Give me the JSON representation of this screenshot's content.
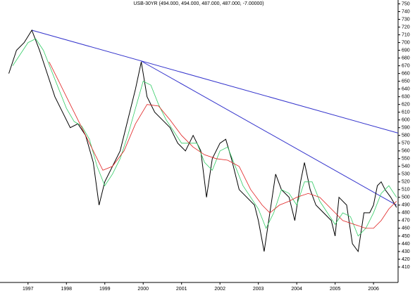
{
  "chart_data": {
    "type": "line",
    "title": "USB-30YR (494.000, 494.000, 487.000, 487.000, -7.00000)",
    "xlim": [
      1996.27,
      2006.64
    ],
    "xticks": [
      1997,
      1998,
      1999,
      2000,
      2001,
      2002,
      2003,
      2004,
      2005,
      2006
    ],
    "ylim": [
      390,
      755
    ],
    "yticks": [
      410,
      420,
      430,
      440,
      450,
      460,
      470,
      480,
      490,
      500,
      510,
      520,
      530,
      540,
      550,
      560,
      570,
      580,
      590,
      600,
      610,
      620,
      630,
      640,
      650,
      660,
      670,
      680,
      690,
      700,
      710,
      720,
      730,
      740,
      750
    ],
    "series": [
      {
        "color": "#000000",
        "x": [
          1996.5,
          1996.7,
          1996.9,
          1997.1,
          1997.3,
          1997.5,
          1997.7,
          1997.9,
          1998.1,
          1998.3,
          1998.5,
          1998.7,
          1998.85,
          1999.0,
          1999.2,
          1999.4,
          1999.6,
          1999.8,
          1999.95,
          2000.1,
          2000.3,
          2000.5,
          2000.7,
          2000.9,
          2001.1,
          2001.3,
          2001.5,
          2001.65,
          2001.8,
          2002.0,
          2002.15,
          2002.3,
          2002.5,
          2002.7,
          2002.9,
          2003.0,
          2003.15,
          2003.3,
          2003.45,
          2003.6,
          2003.8,
          2003.95,
          2004.1,
          2004.2,
          2004.35,
          2004.5,
          2004.7,
          2004.9,
          2005.0,
          2005.1,
          2005.3,
          2005.45,
          2005.6,
          2005.75,
          2005.9,
          2006.0,
          2006.1,
          2006.2,
          2006.3,
          2006.45,
          2006.6
        ],
        "values": [
          660,
          690,
          700,
          716,
          690,
          660,
          630,
          610,
          590,
          595,
          580,
          545,
          490,
          520,
          540,
          560,
          600,
          640,
          675,
          630,
          610,
          600,
          590,
          570,
          560,
          580,
          560,
          500,
          550,
          570,
          575,
          550,
          510,
          500,
          490,
          470,
          430,
          480,
          530,
          510,
          500,
          470,
          520,
          545,
          510,
          490,
          480,
          470,
          450,
          500,
          490,
          440,
          430,
          480,
          480,
          490,
          515,
          520,
          510,
          500,
          487
        ]
      },
      {
        "color": "#33cc66",
        "x": [
          1996.6,
          1996.8,
          1997.0,
          1997.2,
          1997.4,
          1997.6,
          1997.8,
          1998.0,
          1998.2,
          1998.4,
          1998.6,
          1998.8,
          1999.0,
          1999.2,
          1999.4,
          1999.6,
          1999.8,
          2000.0,
          2000.2,
          2000.4,
          2000.6,
          2000.8,
          2001.0,
          2001.2,
          2001.4,
          2001.6,
          2001.8,
          2002.0,
          2002.2,
          2002.4,
          2002.6,
          2002.8,
          2003.0,
          2003.2,
          2003.4,
          2003.6,
          2003.8,
          2004.0,
          2004.2,
          2004.4,
          2004.6,
          2004.8,
          2005.0,
          2005.2,
          2005.4,
          2005.6,
          2005.8,
          2006.0,
          2006.2,
          2006.4,
          2006.6
        ],
        "values": [
          670,
          685,
          700,
          705,
          690,
          665,
          640,
          615,
          598,
          592,
          575,
          540,
          515,
          530,
          550,
          580,
          615,
          650,
          645,
          620,
          600,
          585,
          570,
          570,
          570,
          545,
          535,
          560,
          565,
          540,
          515,
          500,
          485,
          460,
          480,
          510,
          505,
          490,
          520,
          520,
          495,
          480,
          465,
          480,
          475,
          450,
          460,
          480,
          505,
          515,
          500
        ]
      },
      {
        "color": "#e02020",
        "x": [
          1997.55,
          1997.8,
          1998.1,
          1998.4,
          1998.7,
          1998.95,
          1999.2,
          1999.5,
          1999.8,
          2000.1,
          2000.4,
          2000.7,
          2001.0,
          2001.3,
          2001.6,
          2001.9,
          2002.2,
          2002.5,
          2002.8,
          2003.1,
          2003.3,
          2003.55,
          2003.8,
          2004.0,
          2004.3,
          2004.6,
          2004.9,
          2005.2,
          2005.5,
          2005.8,
          2006.0,
          2006.2,
          2006.4,
          2006.6
        ],
        "values": [
          675,
          650,
          620,
          590,
          560,
          535,
          540,
          560,
          595,
          620,
          618,
          600,
          580,
          565,
          555,
          550,
          548,
          540,
          510,
          490,
          480,
          490,
          495,
          500,
          505,
          500,
          485,
          470,
          465,
          460,
          460,
          470,
          485,
          495
        ]
      }
    ],
    "trend_lines": [
      {
        "color": "#3333cc",
        "x": [
          1997.1,
          2006.64
        ],
        "values": [
          716,
          583
        ]
      },
      {
        "color": "#3333cc",
        "x": [
          1999.95,
          2006.6
        ],
        "values": [
          676,
          490
        ]
      }
    ]
  }
}
